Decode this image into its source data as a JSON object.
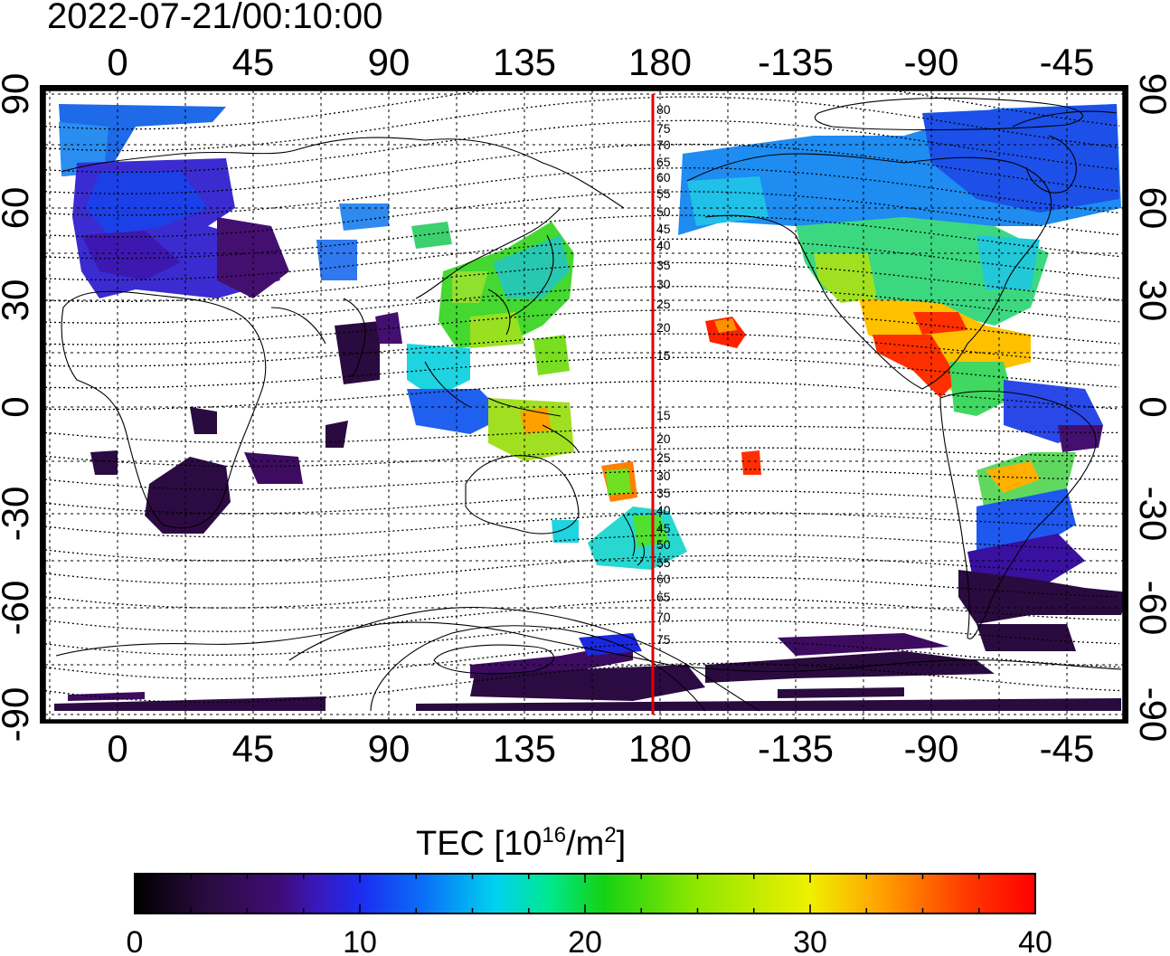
{
  "title": "2022-07-21/00:10:00",
  "axes": {
    "top_lon_labels": [
      "0",
      "45",
      "90",
      "135",
      "180",
      "-135",
      "-90",
      "-45"
    ],
    "bottom_lon_labels": [
      "0",
      "45",
      "90",
      "135",
      "180",
      "-135",
      "-90",
      "-45"
    ],
    "left_lat_labels": [
      "90",
      "60",
      "30",
      "0",
      "-30",
      "-60",
      "-90"
    ],
    "right_lat_labels": [
      "90",
      "60",
      "30",
      "0",
      "-30",
      "-60",
      "-90"
    ]
  },
  "colorbar": {
    "label_main": "TEC  [10",
    "label_sup1": "16",
    "label_mid": "/m",
    "label_sup2": "2",
    "label_end": "]",
    "tick_labels": [
      "0",
      "10",
      "20",
      "30",
      "40"
    ],
    "min": 0,
    "max": 40
  },
  "meridian": {
    "color": "#e00000",
    "contour_labels": [
      "80",
      "75",
      "70",
      "65",
      "60",
      "55",
      "50",
      "45",
      "40",
      "35",
      "30",
      "25",
      "20",
      "15",
      "15",
      "20",
      "25",
      "30",
      "35",
      "40",
      "45",
      "50",
      "55",
      "60",
      "65",
      "70",
      "75"
    ]
  },
  "colors": {
    "colormap": [
      "#000000",
      "#2a0b3f",
      "#3f0c74",
      "#3a17b8",
      "#1c2cf0",
      "#0a6ef8",
      "#00d2f0",
      "#00e890",
      "#14d214",
      "#8ce600",
      "#f0f000",
      "#ffa000",
      "#ff3c00",
      "#ff0000"
    ]
  }
}
